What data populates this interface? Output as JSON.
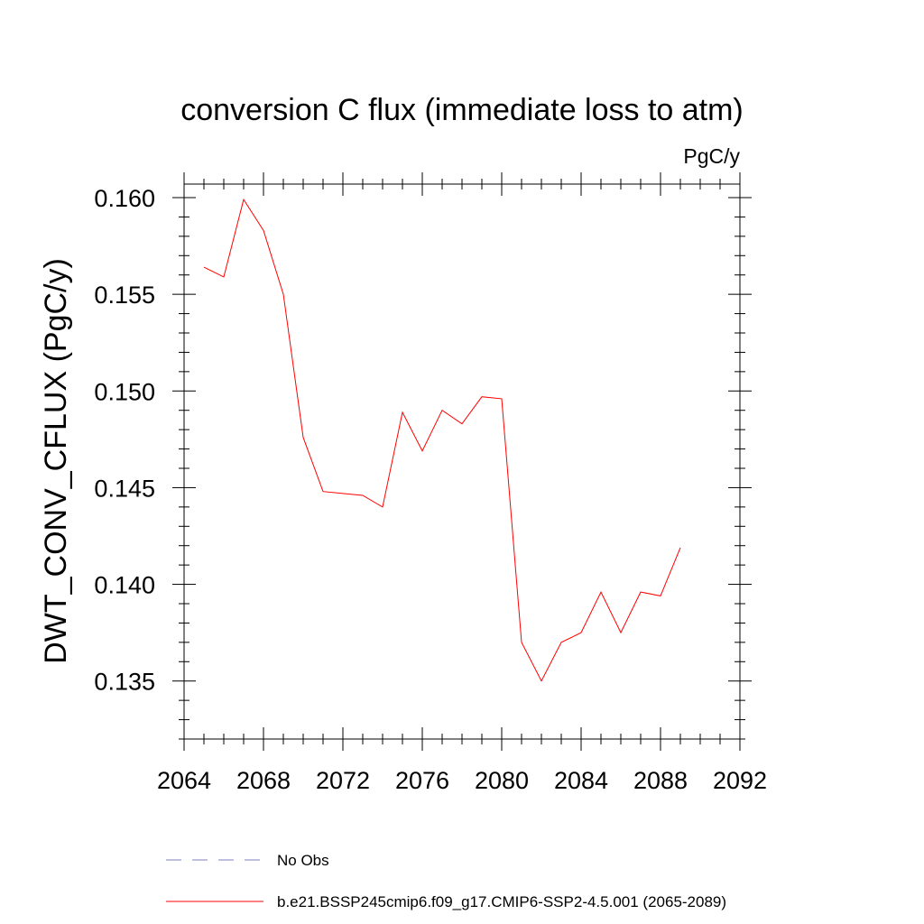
{
  "chart_data": {
    "type": "line",
    "title": "conversion C flux (immediate loss to atm)",
    "units_label": "PgC/y",
    "ylabel": "DWT_CONV_CFLUX  (PgC/y)",
    "xlabel": "",
    "xlim": [
      2064,
      2092
    ],
    "ylim": [
      0.132,
      0.1607
    ],
    "x_ticks": [
      2064,
      2068,
      2072,
      2076,
      2080,
      2084,
      2088,
      2092
    ],
    "y_ticks": [
      0.135,
      0.14,
      0.145,
      0.15,
      0.155,
      0.16
    ],
    "x_tick_labels": [
      "2064",
      "2068",
      "2072",
      "2076",
      "2080",
      "2084",
      "2088",
      "2092"
    ],
    "y_tick_labels": [
      "0.135",
      "0.140",
      "0.145",
      "0.150",
      "0.155",
      "0.160"
    ],
    "grid": false,
    "series": [
      {
        "name": "b.e21.BSSP245cmip6.f09_g17.CMIP6-SSP2-4.5.001 (2065-2089)",
        "color": "#ff0000",
        "x": [
          2065,
          2066,
          2067,
          2068,
          2069,
          2070,
          2071,
          2072,
          2073,
          2074,
          2075,
          2076,
          2077,
          2078,
          2079,
          2080,
          2081,
          2082,
          2083,
          2084,
          2085,
          2086,
          2087,
          2088,
          2089
        ],
        "values": [
          0.1564,
          0.1559,
          0.1599,
          0.1583,
          0.155,
          0.1476,
          0.1448,
          0.1447,
          0.1446,
          0.144,
          0.1489,
          0.1469,
          0.149,
          0.1483,
          0.1497,
          0.1496,
          0.137,
          0.135,
          0.137,
          0.1375,
          0.1396,
          0.1375,
          0.1396,
          0.1394,
          0.1419
        ]
      }
    ],
    "legend": {
      "placement": "bottom",
      "entries": [
        {
          "label": "No Obs",
          "color": "#7f7fbf",
          "style": "dashed"
        },
        {
          "label": "b.e21.BSSP245cmip6.f09_g17.CMIP6-SSP2-4.5.001 (2065-2089)",
          "color": "#ff0000",
          "style": "solid"
        }
      ]
    }
  }
}
